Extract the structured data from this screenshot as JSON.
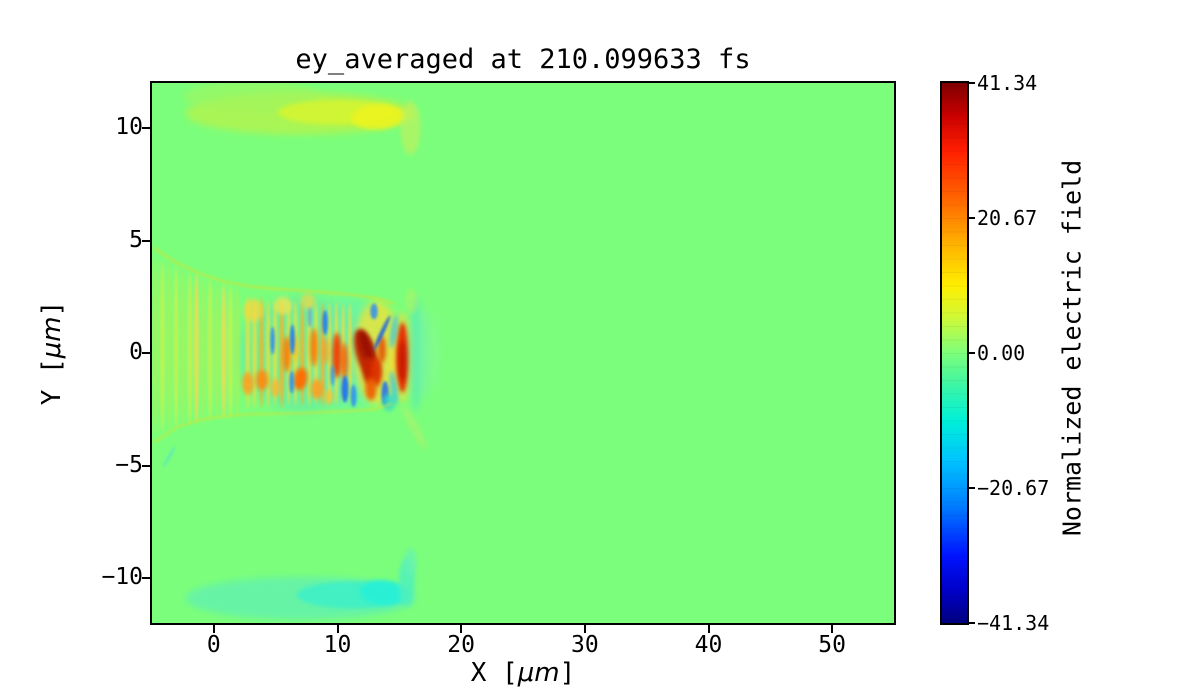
{
  "figure": {
    "title": "ey_averaged at 210.099633 fs",
    "background_color": "#ffffff",
    "plot_background_color": "#7bfe7b"
  },
  "axes": {
    "x": {
      "label_prefix": "X [",
      "label_unit": "μm",
      "label_suffix": "]",
      "tick_labels": [
        "0",
        "10",
        "20",
        "30",
        "40",
        "50"
      ]
    },
    "y": {
      "label_prefix": "Y [",
      "label_unit": "μm",
      "label_suffix": "]",
      "tick_labels": [
        "10",
        "5",
        "0",
        "−5",
        "−10"
      ]
    }
  },
  "colorbar": {
    "label": "Normalized electric field",
    "tick_labels": [
      "41.34",
      "20.67",
      "0.00",
      "−20.67",
      "−41.34"
    ]
  },
  "chart_data": {
    "type": "heatmap",
    "title": "ey_averaged at 210.099633 fs",
    "xlabel": "X [μm]",
    "ylabel": "Y [μm]",
    "x_range": [
      -5,
      55
    ],
    "y_range": [
      -12,
      12
    ],
    "x_ticks": [
      0,
      10,
      20,
      30,
      40,
      50
    ],
    "y_ticks": [
      10,
      5,
      0,
      -5,
      -10
    ],
    "grid": false,
    "colorbar": {
      "label": "Normalized electric field",
      "min": -41.34,
      "max": 41.34,
      "ticks": [
        41.34,
        20.67,
        0.0,
        -20.67,
        -41.34
      ],
      "colormap": "jet",
      "discrete_levels": 40,
      "position": "right"
    },
    "description": "2D contourf map of averaged Ey field from a laser-plasma simulation at t=210.099633 fs. Background value 0 (light green). A striated laser pulse / wakefield structure occupies x=-5..16 um, |y|<~4 um with alternating positive (yellow/orange/red) and negative (cyan/blue) lobes; strongest positive blobs (~+35 to +41) near (12.3,0) and (15.3,-0.2). Faint positive (yellow) horizontal band near y=+10.5 for x=-1..17 and negative (cyan) band near y=-10.8 for x=-1..17. Field is zero elsewhere.",
    "blob_format": [
      "x",
      "y",
      "rx",
      "ry",
      "rot_deg",
      "color",
      "opacity",
      "blur_level"
    ],
    "render": {
      "blobs": [
        [
          7,
          10.65,
          9.3,
          0.95,
          0,
          "#aef452",
          0.9,
          3
        ],
        [
          3,
          11.4,
          5.5,
          0.7,
          0,
          "#a0f55e",
          0.6,
          3
        ],
        [
          10,
          10.7,
          4.8,
          0.55,
          0,
          "#d6f62e",
          0.85,
          2
        ],
        [
          13.3,
          10.5,
          2.2,
          0.55,
          -3,
          "#ecf41e",
          0.9,
          2
        ],
        [
          15.9,
          10.0,
          0.8,
          1.2,
          0,
          "#c6f05c",
          0.6,
          2
        ],
        [
          7,
          -10.9,
          9.3,
          0.95,
          0,
          "#66f2a8",
          0.95,
          3
        ],
        [
          11.3,
          -10.75,
          4.6,
          0.6,
          0,
          "#3df0c8",
          0.9,
          2
        ],
        [
          13.7,
          -10.65,
          1.9,
          0.55,
          3,
          "#28f0d6",
          0.95,
          2
        ],
        [
          15.6,
          -10.2,
          0.65,
          1.1,
          0,
          "#4ff0bc",
          0.85,
          2
        ],
        [
          15.9,
          -9.3,
          0.5,
          0.65,
          0,
          "#66f2b4",
          0.7,
          2
        ],
        [
          7.2,
          -0.05,
          5.2,
          2.55,
          0,
          "#55e2c2",
          0.5,
          4
        ],
        [
          11,
          0,
          3.2,
          2.45,
          0,
          "#5ceac8",
          0.45,
          4
        ],
        [
          -4.7,
          0.3,
          0.2,
          3.9,
          0,
          "#a6f258",
          0.8,
          1
        ],
        [
          -4.15,
          0.3,
          0.2,
          3.8,
          0,
          "#ccf148",
          0.8,
          1
        ],
        [
          -3.6,
          0.3,
          0.2,
          3.75,
          0,
          "#a6f258",
          0.8,
          1
        ],
        [
          -3.05,
          0.25,
          0.2,
          3.6,
          0,
          "#ccf148",
          0.8,
          1
        ],
        [
          -2.5,
          0.25,
          0.2,
          3.5,
          0,
          "#a6f258",
          0.8,
          1
        ],
        [
          -1.95,
          0.2,
          0.2,
          3.4,
          0,
          "#ccf148",
          0.8,
          1
        ],
        [
          -1.4,
          0.2,
          0.2,
          3.35,
          0,
          "#ffd84a",
          0.8,
          1
        ],
        [
          -0.85,
          0.15,
          0.2,
          3.25,
          0,
          "#a6f258",
          0.8,
          1
        ],
        [
          -0.3,
          0.15,
          0.2,
          3.15,
          0,
          "#ccf148",
          0.8,
          1
        ],
        [
          0.25,
          0.1,
          0.2,
          3.05,
          0,
          "#a6f258",
          0.8,
          1
        ],
        [
          0.8,
          0.1,
          0.2,
          3.0,
          0,
          "#ffd84a",
          0.8,
          1
        ],
        [
          1.35,
          0.05,
          0.2,
          2.95,
          0,
          "#ccf148",
          0.8,
          1
        ],
        [
          1.9,
          0.05,
          0.2,
          2.9,
          0,
          "#a6f258",
          0.8,
          1
        ],
        [
          2.75,
          0,
          0.16,
          2.5,
          0,
          "#f0e038",
          0.85,
          1
        ],
        [
          3.3,
          -0.05,
          0.16,
          2.4,
          0,
          "#f0e038",
          0.85,
          1
        ],
        [
          3.85,
          0,
          0.16,
          2.45,
          0,
          "#ffae1e",
          0.85,
          1
        ],
        [
          4.4,
          -0.05,
          0.16,
          2.4,
          0,
          "#f0e038",
          0.85,
          1
        ],
        [
          4.95,
          0,
          0.16,
          2.35,
          0,
          "#f0e038",
          0.85,
          1
        ],
        [
          5.5,
          -0.05,
          0.18,
          2.4,
          0,
          "#ffae1e",
          0.85,
          1
        ],
        [
          6.05,
          0,
          0.16,
          2.3,
          0,
          "#f0e038",
          0.85,
          1
        ],
        [
          6.6,
          0,
          0.16,
          2.35,
          0,
          "#f0e038",
          0.85,
          1
        ],
        [
          7.15,
          -0.05,
          0.16,
          2.3,
          0,
          "#ffae1e",
          0.85,
          1
        ],
        [
          7.7,
          0,
          0.16,
          2.35,
          0,
          "#f0e038",
          0.85,
          1
        ],
        [
          8.25,
          0,
          0.16,
          2.3,
          0,
          "#f0e038",
          0.85,
          1
        ],
        [
          8.8,
          -0.05,
          0.16,
          2.3,
          0,
          "#ffae1e",
          0.85,
          1
        ],
        [
          9.35,
          0,
          0.16,
          2.25,
          0,
          "#f0e038",
          0.85,
          1
        ],
        [
          9.9,
          0,
          0.16,
          2.3,
          0,
          "#f0e038",
          0.85,
          1
        ],
        [
          10.45,
          0,
          0.16,
          2.2,
          0,
          "#f0e038",
          0.85,
          1
        ],
        [
          11.0,
          0,
          0.16,
          2.2,
          0,
          "#f0e038",
          0.85,
          1
        ],
        [
          3.2,
          1.9,
          0.8,
          0.5,
          0,
          "#ffd43a",
          0.7,
          2
        ],
        [
          5.6,
          2.1,
          0.7,
          0.4,
          0,
          "#ffe24a",
          0.7,
          2
        ],
        [
          7.6,
          2.3,
          0.6,
          0.35,
          0,
          "#ffd43a",
          0.6,
          2
        ],
        [
          2.75,
          -1.35,
          0.45,
          0.5,
          0,
          "#ff9d1e",
          0.9,
          2
        ],
        [
          3.9,
          -1.2,
          0.5,
          0.45,
          0,
          "#ff8a10",
          0.9,
          2
        ],
        [
          5.0,
          -1.55,
          0.4,
          0.4,
          0,
          "#ffb42a",
          0.8,
          2
        ],
        [
          7.0,
          -1.15,
          0.55,
          0.5,
          10,
          "#ff6a00",
          0.95,
          2
        ],
        [
          8.35,
          -1.6,
          0.5,
          0.45,
          0,
          "#ff9d1e",
          0.9,
          2
        ],
        [
          9.3,
          -1.95,
          0.38,
          0.33,
          0,
          "#ffc22a",
          0.8,
          2
        ],
        [
          5.9,
          -0.05,
          0.3,
          0.8,
          0,
          "#ff7a00",
          0.95,
          2
        ],
        [
          6.6,
          0.2,
          0.24,
          0.6,
          0,
          "#ffc020",
          0.85,
          2
        ],
        [
          8.1,
          0.25,
          0.3,
          0.85,
          0,
          "#ff7a00",
          0.95,
          2
        ],
        [
          9.0,
          0.1,
          0.24,
          0.6,
          0,
          "#ff9d1e",
          0.85,
          2
        ],
        [
          9.95,
          -0.1,
          0.36,
          1.0,
          0,
          "#f23800",
          0.95,
          2
        ],
        [
          10.55,
          -0.35,
          0.3,
          0.8,
          0,
          "#ff5a00",
          0.85,
          2
        ],
        [
          4.75,
          0.55,
          0.18,
          0.62,
          0,
          "#2f8df2",
          0.9,
          1
        ],
        [
          6.35,
          0.6,
          0.2,
          0.66,
          0,
          "#1f7df0",
          0.9,
          1
        ],
        [
          6.3,
          -1.3,
          0.2,
          0.5,
          0,
          "#2f8df2",
          0.85,
          1
        ],
        [
          7.75,
          1.6,
          0.18,
          0.45,
          0,
          "#49a5f0",
          0.7,
          1
        ],
        [
          9.0,
          1.35,
          0.22,
          0.55,
          0,
          "#1f7df0",
          0.9,
          1
        ],
        [
          9.6,
          -1.0,
          0.18,
          0.45,
          0,
          "#2f8df2",
          0.7,
          1
        ],
        [
          10.6,
          -1.6,
          0.28,
          0.6,
          0,
          "#1f6df0",
          0.9,
          1
        ],
        [
          11.3,
          -1.9,
          0.24,
          0.5,
          0,
          "#2f8df2",
          0.85,
          1
        ],
        [
          13.2,
          0,
          1.9,
          2.3,
          0,
          "#eee23a",
          0.8,
          3
        ],
        [
          12.35,
          -0.1,
          0.8,
          1.2,
          -18,
          "#b81c00",
          0.95,
          2
        ],
        [
          12.3,
          0.35,
          0.45,
          0.7,
          -18,
          "#9a1000",
          0.9,
          2
        ],
        [
          12.55,
          -0.8,
          0.5,
          0.6,
          0,
          "#c82400",
          0.9,
          2
        ],
        [
          13.15,
          -0.85,
          0.45,
          0.65,
          0,
          "#e03400",
          0.9,
          2
        ],
        [
          12.7,
          -1.6,
          0.45,
          0.5,
          0,
          "#f05a00",
          0.9,
          2
        ],
        [
          13.6,
          0.15,
          0.33,
          0.6,
          0,
          "#e84a00",
          0.85,
          2
        ],
        [
          15.2,
          -0.2,
          0.95,
          2.0,
          0,
          "#f2da38",
          0.65,
          3
        ],
        [
          15.25,
          -0.2,
          0.5,
          1.55,
          0,
          "#e82800",
          0.95,
          2
        ],
        [
          15.25,
          -0.35,
          0.3,
          0.9,
          0,
          "#c41800",
          0.9,
          2
        ],
        [
          13.6,
          0.9,
          0.16,
          0.85,
          25,
          "#1560e8",
          0.9,
          1
        ],
        [
          12.95,
          1.85,
          0.3,
          0.35,
          0,
          "#2f8df2",
          0.85,
          1
        ],
        [
          13.85,
          -1.8,
          0.3,
          0.55,
          0,
          "#1f6df0",
          0.85,
          1
        ],
        [
          14.15,
          -2.2,
          0.5,
          0.38,
          0,
          "#35d8c8",
          0.8,
          2
        ],
        [
          14.55,
          0.95,
          0.25,
          0.75,
          8,
          "#35c8e8",
          0.8,
          2
        ],
        [
          14.55,
          -1.55,
          0.25,
          0.75,
          -8,
          "#35c8e8",
          0.8,
          2
        ],
        [
          16.35,
          0,
          0.5,
          2.6,
          0,
          "#55e8c0",
          0.65,
          3
        ],
        [
          17.1,
          0,
          0.38,
          2.1,
          0,
          "#7cf0b8",
          0.5,
          3
        ],
        [
          17.9,
          0,
          0.3,
          1.7,
          0,
          "#8ef5b2",
          0.35,
          3
        ],
        [
          16.2,
          -3.3,
          0.35,
          1.1,
          -28,
          "#b8f068",
          0.5,
          2
        ],
        [
          16.0,
          2.3,
          0.5,
          0.55,
          0,
          "#c8f055",
          0.4,
          2
        ],
        [
          -3.6,
          -4.6,
          0.12,
          0.55,
          30,
          "#55e8c0",
          0.8,
          1
        ]
      ],
      "paths": [
        {
          "points": [
            [
              -4.8,
              4.65
            ],
            [
              -3,
              4.0
            ],
            [
              -1,
              3.5
            ],
            [
              1,
              3.15
            ],
            [
              3,
              2.95
            ],
            [
              5,
              2.85
            ],
            [
              7,
              2.78
            ],
            [
              9,
              2.7
            ],
            [
              11,
              2.6
            ],
            [
              13,
              2.45
            ],
            [
              14.6,
              2.2
            ]
          ],
          "color": "#e6de20",
          "width": 1.6,
          "opacity": 0.75
        },
        {
          "points": [
            [
              -4.8,
              -3.95
            ],
            [
              -3,
              -3.3
            ],
            [
              -1,
              -2.95
            ],
            [
              1,
              -2.8
            ],
            [
              3,
              -2.72
            ],
            [
              5,
              -2.7
            ],
            [
              7,
              -2.68
            ],
            [
              9,
              -2.62
            ],
            [
              11,
              -2.58
            ],
            [
              13,
              -2.5
            ],
            [
              14.4,
              -2.25
            ]
          ],
          "color": "#e6de20",
          "width": 1.6,
          "opacity": 0.65
        }
      ]
    }
  }
}
